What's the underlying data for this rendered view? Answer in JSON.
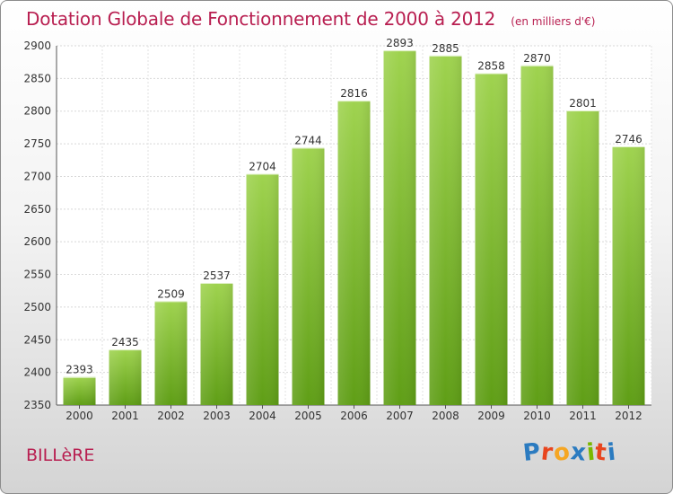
{
  "chart_data": {
    "type": "bar",
    "title": "Dotation Globale de Fonctionnement de 2000 à 2012",
    "subtitle": "(en milliers d'€)",
    "categories": [
      "2000",
      "2001",
      "2002",
      "2003",
      "2004",
      "2005",
      "2006",
      "2007",
      "2008",
      "2009",
      "2010",
      "2011",
      "2012"
    ],
    "values": [
      2393,
      2435,
      2509,
      2537,
      2704,
      2744,
      2816,
      2893,
      2885,
      2858,
      2870,
      2801,
      2746
    ],
    "ylim": [
      2350,
      2900
    ],
    "yticks": [
      2350,
      2400,
      2450,
      2500,
      2550,
      2600,
      2650,
      2700,
      2750,
      2800,
      2850,
      2900
    ],
    "grid": true,
    "bar_color": "#8cc63f"
  },
  "footer": {
    "commune": "BILLèRE",
    "logo": {
      "letters": [
        "P",
        "r",
        "o",
        "x",
        "i",
        "t",
        "i"
      ],
      "colors": [
        "#2b7bc0",
        "#e8451e",
        "#f5a623",
        "#2b7bc0",
        "#7ab800",
        "#e8451e",
        "#2b7bc0"
      ]
    }
  },
  "colors": {
    "title": "#b81e50",
    "bar_top": "#9fd34f",
    "bar_bottom": "#5f9e16"
  }
}
